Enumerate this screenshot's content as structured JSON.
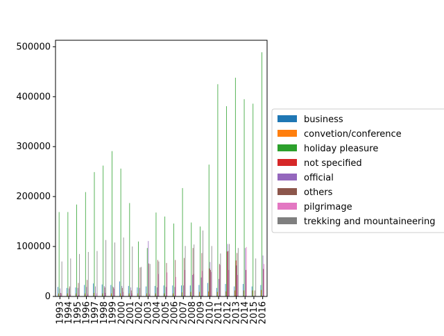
{
  "chart_data": {
    "type": "bar",
    "title": "",
    "xlabel": "",
    "ylabel": "",
    "ylim": [
      0,
      513000
    ],
    "yticks": [
      0,
      100000,
      200000,
      300000,
      400000,
      500000
    ],
    "grid": false,
    "legend_position": "center-right",
    "categories": [
      "1993",
      "1994",
      "1995",
      "1996",
      "1997",
      "1998",
      "1999",
      "2000",
      "2001",
      "2002",
      "2003",
      "2004",
      "2005",
      "2006",
      "2007",
      "2008",
      "2009",
      "2010",
      "2011",
      "2012",
      "2013",
      "2014",
      "2015",
      "2016"
    ],
    "series": [
      {
        "name": "business",
        "color": "#1f77b4",
        "values": [
          19000,
          17000,
          18000,
          23000,
          26000,
          24000,
          23000,
          30000,
          21000,
          18000,
          20000,
          21000,
          22000,
          22000,
          22000,
          22000,
          23000,
          27000,
          17000,
          25000,
          20000,
          25000,
          20000,
          23000
        ]
      },
      {
        "name": "convetion/conference",
        "color": "#ff7f0e",
        "values": [
          6000,
          6000,
          6000,
          6000,
          7000,
          6000,
          6000,
          6000,
          6000,
          6000,
          6000,
          6000,
          6000,
          6000,
          8000,
          9000,
          9000,
          10000,
          9000,
          10000,
          12000,
          12000,
          12000,
          13000
        ]
      },
      {
        "name": "holiday pleasure",
        "color": "#2ca02c",
        "values": [
          169000,
          169000,
          184000,
          209000,
          249000,
          262000,
          291000,
          256000,
          187000,
          110000,
          97000,
          168000,
          160000,
          146000,
          217000,
          148000,
          140000,
          264000,
          425000,
          381000,
          438000,
          395000,
          386000,
          489000
        ]
      },
      {
        "name": "not specified",
        "color": "#d62728",
        "values": [
          0,
          0,
          0,
          0,
          0,
          0,
          0,
          0,
          0,
          0,
          0,
          0,
          0,
          0,
          0,
          0,
          0,
          56000,
          0,
          90000,
          72000,
          0,
          0,
          0
        ]
      },
      {
        "name": "official",
        "color": "#9467bd",
        "values": [
          16000,
          16000,
          17000,
          19000,
          20000,
          21000,
          20000,
          21000,
          18000,
          17000,
          111000,
          18000,
          19000,
          19000,
          22000,
          43000,
          38000,
          69000,
          35000,
          105000,
          62000,
          97000,
          0,
          82000
        ]
      },
      {
        "name": "others",
        "color": "#8c564b",
        "values": [
          7000,
          20000,
          27000,
          33000,
          0,
          18000,
          18000,
          17000,
          12000,
          58000,
          66000,
          73000,
          67000,
          73000,
          77000,
          97000,
          87000,
          53000,
          65000,
          91000,
          87000,
          53000,
          12000,
          55000
        ]
      },
      {
        "name": "pilgrimage",
        "color": "#e377c2",
        "values": [
          6000,
          4000,
          3000,
          5000,
          6000,
          7000,
          15000,
          9000,
          6000,
          0,
          5000,
          45000,
          48000,
          39000,
          53000,
          45000,
          51000,
          49000,
          63000,
          53000,
          43000,
          99000,
          0,
          65000
        ]
      },
      {
        "name": "trekking and mountaineering",
        "color": "#7f7f7f",
        "values": [
          70000,
          76000,
          85000,
          89000,
          91000,
          113000,
          108000,
          118000,
          100000,
          59000,
          65000,
          70000,
          0,
          0,
          101000,
          104000,
          132000,
          101000,
          86000,
          105000,
          97000,
          0,
          76000,
          0
        ]
      }
    ]
  }
}
